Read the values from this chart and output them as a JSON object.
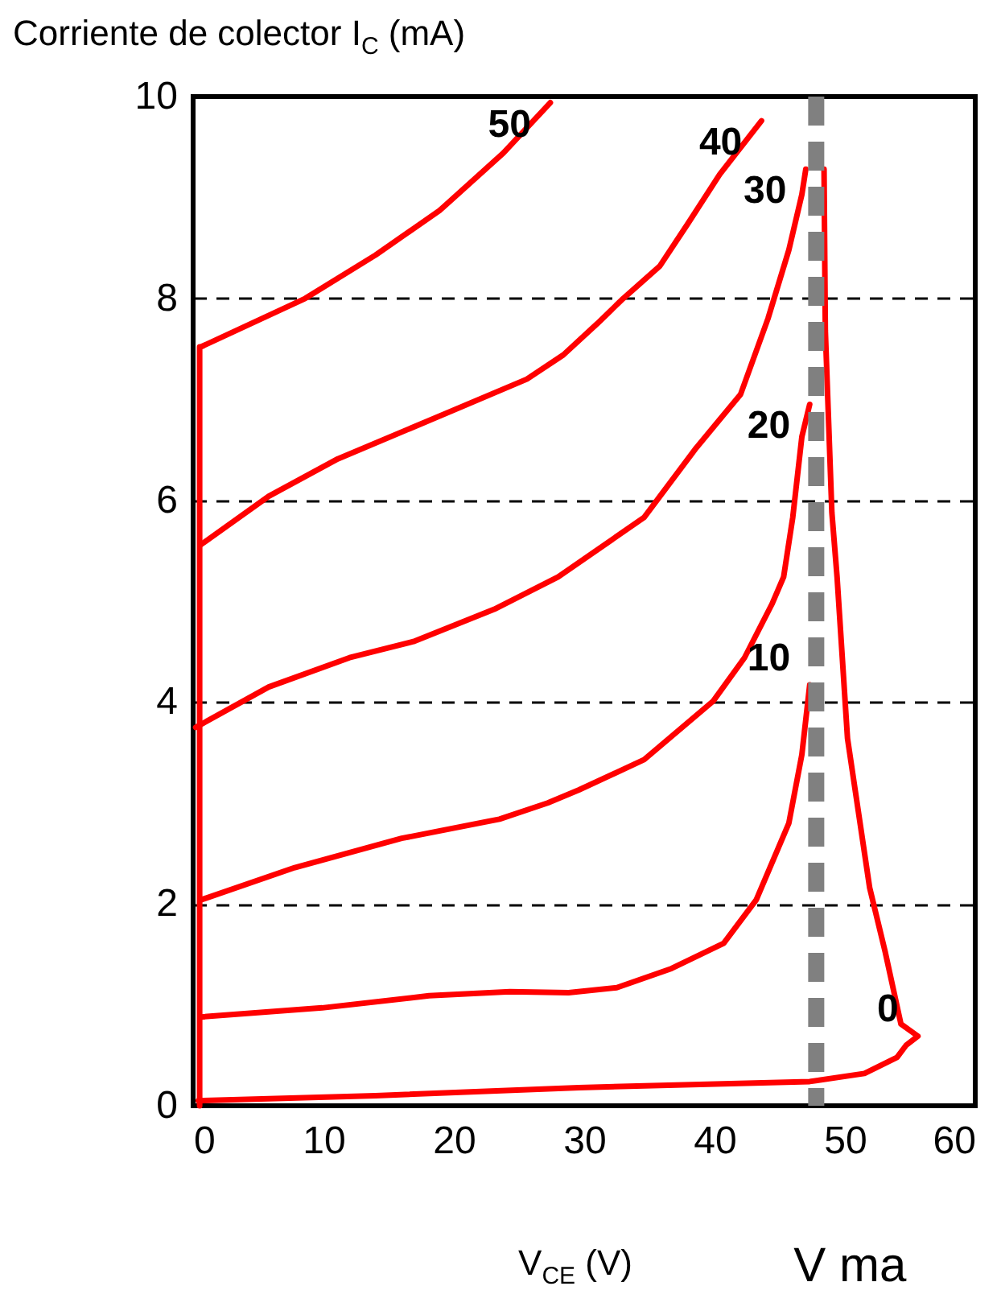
{
  "chart_data": {
    "type": "line",
    "xlabel": "V$_{CE}$ (V)",
    "ylabel": "Corriente de colector I$_{C}$ (mA)",
    "xlim": [
      0,
      60
    ],
    "xticks": [
      0,
      10,
      20,
      30,
      40,
      50,
      60
    ],
    "ylim": [
      0,
      10
    ],
    "yticks": [
      0,
      2,
      4,
      6,
      8,
      10
    ],
    "grid": "y",
    "line_style": "solid",
    "marker": "none",
    "series": [
      {
        "name": "50",
        "color": "#ff0000",
        "x": [
          0.5,
          0.5,
          0.6,
          8.6,
          14.0,
          18.9,
          23.8,
          27.4
        ],
        "values": [
          0,
          7.52,
          7.52,
          8.0,
          8.43,
          8.87,
          9.44,
          9.94
        ]
      },
      {
        "name": "40",
        "color": "#ff0000",
        "x": [
          0.6,
          5.8,
          11.1,
          18.1,
          25.6,
          28.4,
          31.0,
          33.0,
          35.8,
          38.0,
          40.4,
          43.6
        ],
        "values": [
          5.56,
          6.04,
          6.41,
          6.79,
          7.2,
          7.44,
          7.75,
          8.0,
          8.32,
          8.75,
          9.23,
          9.76
        ]
      },
      {
        "name": "30",
        "color": "#ff0000",
        "x": [
          0.2,
          5.8,
          12.0,
          16.9,
          23.1,
          28.0,
          34.6,
          38.6,
          42.0,
          44.1,
          45.7,
          46.7,
          47.0
        ],
        "values": [
          3.75,
          4.15,
          4.44,
          4.6,
          4.92,
          5.24,
          5.83,
          6.52,
          7.05,
          7.8,
          8.48,
          9.03,
          9.28
        ]
      },
      {
        "name": "20",
        "color": "#ff0000",
        "x": [
          0.6,
          7.8,
          16.0,
          23.5,
          27.2,
          29.6,
          34.6,
          39.9,
          42.3,
          44.4,
          45.3,
          46.0,
          46.7,
          47.3
        ],
        "values": [
          2.04,
          2.36,
          2.65,
          2.84,
          3.0,
          3.13,
          3.43,
          4.01,
          4.44,
          4.97,
          5.24,
          5.83,
          6.63,
          6.95
        ]
      },
      {
        "name": "10",
        "color": "#ff0000",
        "x": [
          0.6,
          9.9,
          18.1,
          24.3,
          28.8,
          32.5,
          36.7,
          40.7,
          43.2,
          45.7,
          46.7,
          47.3
        ],
        "values": [
          0.88,
          0.97,
          1.09,
          1.13,
          1.12,
          1.17,
          1.36,
          1.61,
          2.04,
          2.8,
          3.48,
          4.17
        ]
      },
      {
        "name": "0",
        "color": "#ff0000",
        "x": [
          0.4,
          14.0,
          29.6,
          47.3,
          51.5,
          54.0,
          54.7,
          55.6,
          54.3,
          53.1,
          51.9,
          50.2,
          49.4,
          49.0,
          48.5,
          48.4
        ],
        "values": [
          0.05,
          0.1,
          0.18,
          0.24,
          0.32,
          0.48,
          0.6,
          0.69,
          0.81,
          1.52,
          2.16,
          3.64,
          5.24,
          5.88,
          7.68,
          9.28
        ]
      }
    ],
    "ref_lines": [
      {
        "axis": "x",
        "value": 47.8,
        "label": "V ma",
        "color": "#808080",
        "line_style": "dashed"
      }
    ]
  }
}
